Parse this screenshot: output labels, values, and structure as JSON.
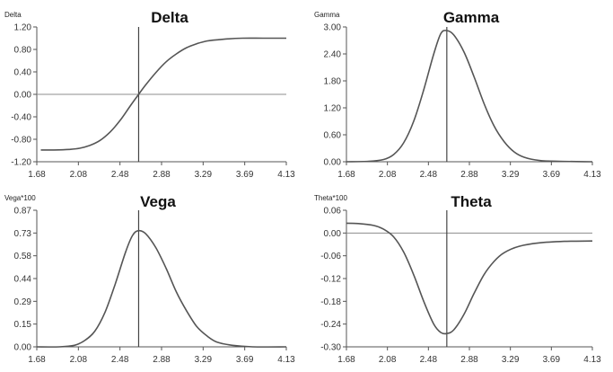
{
  "chart_data": [
    {
      "type": "line",
      "title": "Delta",
      "ylabel": "Delta",
      "xlabel": "",
      "xlim": [
        1.68,
        4.13
      ],
      "ylim": [
        -1.2,
        1.2
      ],
      "x_ticks": [
        "1.68",
        "2.08",
        "2.48",
        "2.88",
        "3.29",
        "3.69",
        "4.13"
      ],
      "y_ticks": [
        "1.20",
        "0.80",
        "0.40",
        "0.00",
        "-0.40",
        "-0.80",
        "-1.20"
      ],
      "zero_line": true,
      "marker_x": 2.68,
      "series": [
        {
          "x": [
            1.72,
            1.85,
            2.0,
            2.1,
            2.2,
            2.3,
            2.4,
            2.5,
            2.6,
            2.68,
            2.75,
            2.85,
            2.95,
            3.05,
            3.15,
            3.25,
            3.35,
            3.5,
            3.7,
            3.9,
            4.13
          ],
          "y": [
            -0.99,
            -0.99,
            -0.98,
            -0.96,
            -0.91,
            -0.82,
            -0.67,
            -0.46,
            -0.2,
            0.0,
            0.17,
            0.39,
            0.58,
            0.72,
            0.83,
            0.9,
            0.95,
            0.98,
            1.0,
            1.0,
            1.0
          ]
        }
      ]
    },
    {
      "type": "line",
      "title": "Gamma",
      "ylabel": "Gamma",
      "xlabel": "",
      "xlim": [
        1.68,
        4.13
      ],
      "ylim": [
        0,
        3.0
      ],
      "x_ticks": [
        "1.68",
        "2.08",
        "2.48",
        "2.88",
        "3.29",
        "3.69",
        "4.13"
      ],
      "y_ticks": [
        "3.00",
        "2.40",
        "1.80",
        "1.20",
        "0.60",
        "0.00"
      ],
      "zero_line": false,
      "marker_x": 2.68,
      "series": [
        {
          "x": [
            1.68,
            1.9,
            2.05,
            2.15,
            2.25,
            2.35,
            2.45,
            2.55,
            2.62,
            2.68,
            2.75,
            2.85,
            2.95,
            3.05,
            3.15,
            3.25,
            3.35,
            3.45,
            3.6,
            3.8,
            4.13
          ],
          "y": [
            0.0,
            0.01,
            0.05,
            0.16,
            0.42,
            0.9,
            1.6,
            2.4,
            2.85,
            2.92,
            2.82,
            2.45,
            1.9,
            1.3,
            0.8,
            0.45,
            0.22,
            0.1,
            0.03,
            0.01,
            0.0
          ]
        }
      ]
    },
    {
      "type": "line",
      "title": "Vega",
      "ylabel": "Vega*100",
      "xlabel": "",
      "xlim": [
        1.68,
        4.13
      ],
      "ylim": [
        0,
        0.87
      ],
      "x_ticks": [
        "1.68",
        "2.08",
        "2.48",
        "2.88",
        "3.29",
        "3.69",
        "4.13"
      ],
      "y_ticks": [
        "0.87",
        "0.73",
        "0.58",
        "0.44",
        "0.29",
        "0.15",
        "0.00"
      ],
      "zero_line": false,
      "marker_x": 2.68,
      "series": [
        {
          "x": [
            1.68,
            1.9,
            2.05,
            2.15,
            2.25,
            2.35,
            2.45,
            2.55,
            2.62,
            2.68,
            2.75,
            2.85,
            2.95,
            3.05,
            3.15,
            3.25,
            3.35,
            3.45,
            3.6,
            3.8,
            4.13
          ],
          "y": [
            0.0,
            0.0,
            0.01,
            0.04,
            0.1,
            0.22,
            0.4,
            0.6,
            0.71,
            0.74,
            0.72,
            0.63,
            0.5,
            0.35,
            0.23,
            0.13,
            0.07,
            0.03,
            0.01,
            0.0,
            0.0
          ]
        }
      ]
    },
    {
      "type": "line",
      "title": "Theta",
      "ylabel": "Theta*100",
      "xlabel": "",
      "xlim": [
        1.68,
        4.13
      ],
      "ylim": [
        -0.3,
        0.06
      ],
      "x_ticks": [
        "1.68",
        "2.08",
        "2.48",
        "2.88",
        "3.29",
        "3.69",
        "4.13"
      ],
      "y_ticks": [
        "0.06",
        "0.00",
        "-0.06",
        "-0.12",
        "-0.18",
        "-0.24",
        "-0.30"
      ],
      "zero_line": true,
      "marker_x": 2.68,
      "series": [
        {
          "x": [
            1.68,
            1.8,
            1.95,
            2.05,
            2.15,
            2.25,
            2.35,
            2.45,
            2.55,
            2.62,
            2.68,
            2.75,
            2.85,
            2.95,
            3.05,
            3.15,
            3.25,
            3.4,
            3.6,
            3.85,
            4.13
          ],
          "y": [
            0.026,
            0.025,
            0.02,
            0.01,
            -0.01,
            -0.05,
            -0.11,
            -0.18,
            -0.24,
            -0.262,
            -0.265,
            -0.255,
            -0.215,
            -0.16,
            -0.11,
            -0.075,
            -0.052,
            -0.035,
            -0.026,
            -0.022,
            -0.021
          ]
        }
      ]
    }
  ]
}
